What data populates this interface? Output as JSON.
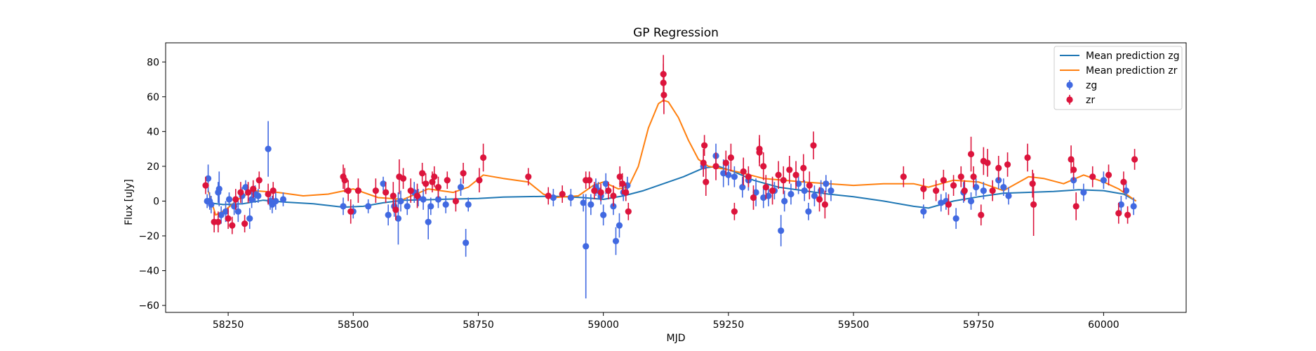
{
  "chart_data": {
    "type": "scatter",
    "title": "GP Regression",
    "xlabel": "MJD",
    "ylabel": "Flux [uJy]",
    "xlim": [
      58125,
      60165
    ],
    "ylim": [
      -64,
      91
    ],
    "xticks": [
      58250,
      58500,
      58750,
      59000,
      59250,
      59500,
      59750,
      60000
    ],
    "yticks": [
      -60,
      -40,
      -20,
      0,
      20,
      40,
      60,
      80
    ],
    "legend_position": "top-right",
    "grid": false,
    "colors": {
      "zg_line": "#1f77b4",
      "zr_line": "#ff7f0e",
      "zg_points": "#4169e1",
      "zr_points": "#dc143c"
    },
    "lines": [
      {
        "name": "Mean prediction zg",
        "x": [
          58210,
          58240,
          58280,
          58320,
          58360,
          58420,
          58480,
          58520,
          58560,
          58600,
          58650,
          58700,
          58750,
          58800,
          58900,
          58960,
          59000,
          59040,
          59080,
          59120,
          59160,
          59200,
          59230,
          59260,
          59300,
          59350,
          59400,
          59450,
          59500,
          59560,
          59620,
          59650,
          59700,
          59750,
          59800,
          59900,
          59950,
          60000,
          60040,
          60065
        ],
        "y": [
          -1,
          -2,
          -1.5,
          0.5,
          -0.5,
          -1.5,
          -3.5,
          -3,
          -1,
          0.5,
          0.8,
          1.2,
          1.5,
          2.3,
          2.8,
          2,
          1,
          3,
          6,
          10,
          14,
          19,
          20,
          17,
          12,
          8,
          6,
          4,
          2.5,
          0,
          -3,
          -4,
          0,
          2.5,
          4.5,
          5.5,
          6.5,
          6,
          4,
          0
        ]
      },
      {
        "name": "Mean prediction zr",
        "x": [
          58210,
          58225,
          58245,
          58270,
          58300,
          58350,
          58400,
          58450,
          58500,
          58550,
          58600,
          58650,
          58700,
          58730,
          58760,
          58800,
          58850,
          58880,
          58900,
          58950,
          58980,
          59000,
          59030,
          59050,
          59070,
          59090,
          59110,
          59120,
          59130,
          59150,
          59170,
          59190,
          59210,
          59230,
          59250,
          59280,
          59320,
          59360,
          59400,
          59450,
          59500,
          59560,
          59620,
          59650,
          59700,
          59750,
          59800,
          59850,
          59880,
          59920,
          59960,
          60000,
          60030,
          60065
        ],
        "y": [
          6,
          -8,
          -5,
          1,
          6,
          5,
          3,
          4,
          7,
          2,
          1,
          7,
          5,
          8,
          15,
          13,
          11,
          4,
          2,
          3,
          9,
          11,
          7,
          8,
          20,
          42,
          56,
          58,
          57,
          48,
          35,
          24,
          20,
          19,
          18,
          16,
          13,
          12,
          11,
          10,
          9,
          10,
          10,
          8,
          12,
          11,
          6,
          14,
          13,
          10,
          15,
          11,
          7,
          0
        ]
      }
    ],
    "series": [
      {
        "name": "zg",
        "points": [
          [
            58208,
            0,
            4
          ],
          [
            58210,
            13,
            8
          ],
          [
            58213,
            0,
            5
          ],
          [
            58216,
            -2,
            5
          ],
          [
            58230,
            5,
            6
          ],
          [
            58232,
            7,
            10
          ],
          [
            58236,
            -8,
            5
          ],
          [
            58245,
            -6,
            6
          ],
          [
            58252,
            1,
            4
          ],
          [
            58262,
            -3,
            5
          ],
          [
            58270,
            -6,
            6
          ],
          [
            58278,
            3,
            5
          ],
          [
            58285,
            8,
            4
          ],
          [
            58293,
            -10,
            6
          ],
          [
            58297,
            1,
            5
          ],
          [
            58304,
            4,
            5
          ],
          [
            58310,
            3,
            4
          ],
          [
            58330,
            30,
            16
          ],
          [
            58334,
            0,
            5
          ],
          [
            58338,
            -2,
            5
          ],
          [
            58345,
            0,
            5
          ],
          [
            58360,
            1,
            4
          ],
          [
            58480,
            -3,
            5
          ],
          [
            58500,
            -6,
            4
          ],
          [
            58530,
            -3,
            4
          ],
          [
            58560,
            10,
            4
          ],
          [
            58570,
            -8,
            6
          ],
          [
            58582,
            -3,
            6
          ],
          [
            58590,
            -10,
            15
          ],
          [
            58595,
            0,
            6
          ],
          [
            58608,
            -3,
            5
          ],
          [
            58622,
            5,
            6
          ],
          [
            58630,
            2,
            5
          ],
          [
            58640,
            1,
            6
          ],
          [
            58650,
            -12,
            10
          ],
          [
            58655,
            -3,
            5
          ],
          [
            58670,
            1,
            5
          ],
          [
            58685,
            -2,
            5
          ],
          [
            58715,
            8,
            5
          ],
          [
            58725,
            -24,
            8
          ],
          [
            58730,
            -2,
            4
          ],
          [
            58900,
            2,
            5
          ],
          [
            58935,
            2,
            5
          ],
          [
            58960,
            -1,
            5
          ],
          [
            58965,
            -26,
            30
          ],
          [
            58975,
            -2,
            6
          ],
          [
            58985,
            8,
            5
          ],
          [
            58990,
            6,
            5
          ],
          [
            58995,
            3,
            5
          ],
          [
            59000,
            -8,
            6
          ],
          [
            59005,
            10,
            6
          ],
          [
            59020,
            -3,
            5
          ],
          [
            59025,
            -23,
            8
          ],
          [
            59032,
            -14,
            7
          ],
          [
            59040,
            5,
            5
          ],
          [
            59048,
            9,
            5
          ],
          [
            59200,
            20,
            6
          ],
          [
            59225,
            26,
            7
          ],
          [
            59240,
            16,
            8
          ],
          [
            59250,
            15,
            6
          ],
          [
            59262,
            14,
            6
          ],
          [
            59278,
            8,
            6
          ],
          [
            59290,
            12,
            6
          ],
          [
            59305,
            5,
            8
          ],
          [
            59320,
            2,
            6
          ],
          [
            59330,
            3,
            6
          ],
          [
            59342,
            6,
            5
          ],
          [
            59355,
            -17,
            9
          ],
          [
            59362,
            0,
            6
          ],
          [
            59375,
            4,
            6
          ],
          [
            59390,
            10,
            6
          ],
          [
            59402,
            6,
            6
          ],
          [
            59410,
            -6,
            5
          ],
          [
            59422,
            3,
            6
          ],
          [
            59435,
            6,
            6
          ],
          [
            59445,
            10,
            5
          ],
          [
            59455,
            6,
            6
          ],
          [
            59640,
            -6,
            4
          ],
          [
            59675,
            -1,
            5
          ],
          [
            59685,
            0,
            5
          ],
          [
            59705,
            -10,
            6
          ],
          [
            59720,
            5,
            6
          ],
          [
            59735,
            0,
            5
          ],
          [
            59745,
            8,
            5
          ],
          [
            59760,
            6,
            5
          ],
          [
            59790,
            12,
            5
          ],
          [
            59800,
            8,
            5
          ],
          [
            59810,
            3,
            5
          ],
          [
            59940,
            12,
            5
          ],
          [
            59960,
            5,
            5
          ],
          [
            60000,
            12,
            5
          ],
          [
            60035,
            -2,
            5
          ],
          [
            60045,
            6,
            5
          ],
          [
            60060,
            -3,
            5
          ]
        ]
      },
      {
        "name": "zr",
        "points": [
          [
            58205,
            9,
            5
          ],
          [
            58222,
            -12,
            6
          ],
          [
            58230,
            -12,
            6
          ],
          [
            58250,
            -10,
            6
          ],
          [
            58258,
            -14,
            5
          ],
          [
            58265,
            1,
            6
          ],
          [
            58275,
            5,
            6
          ],
          [
            58283,
            -13,
            5
          ],
          [
            58290,
            5,
            6
          ],
          [
            58300,
            7,
            5
          ],
          [
            58312,
            12,
            5
          ],
          [
            58330,
            4,
            6
          ],
          [
            58340,
            6,
            5
          ],
          [
            58480,
            14,
            7
          ],
          [
            58483,
            12,
            7
          ],
          [
            58490,
            6,
            6
          ],
          [
            58495,
            -6,
            7
          ],
          [
            58510,
            6,
            7
          ],
          [
            58545,
            6,
            7
          ],
          [
            58565,
            5,
            6
          ],
          [
            58580,
            3,
            8
          ],
          [
            58585,
            -5,
            6
          ],
          [
            58592,
            14,
            10
          ],
          [
            58600,
            13,
            6
          ],
          [
            58615,
            6,
            7
          ],
          [
            58628,
            3,
            7
          ],
          [
            58638,
            16,
            6
          ],
          [
            58645,
            10,
            6
          ],
          [
            58658,
            11,
            6
          ],
          [
            58662,
            14,
            6
          ],
          [
            58670,
            8,
            6
          ],
          [
            58688,
            12,
            5
          ],
          [
            58705,
            0,
            6
          ],
          [
            58720,
            16,
            6
          ],
          [
            58752,
            12,
            7
          ],
          [
            58760,
            25,
            8
          ],
          [
            58850,
            14,
            5
          ],
          [
            58890,
            3,
            5
          ],
          [
            58918,
            4,
            5
          ],
          [
            58965,
            12,
            5
          ],
          [
            58972,
            12,
            5
          ],
          [
            58982,
            6,
            5
          ],
          [
            58995,
            5,
            5
          ],
          [
            59010,
            6,
            5
          ],
          [
            59020,
            3,
            6
          ],
          [
            59033,
            14,
            6
          ],
          [
            59038,
            10,
            6
          ],
          [
            59045,
            5,
            5
          ],
          [
            59050,
            -6,
            5
          ],
          [
            59120,
            73,
            11
          ],
          [
            59120,
            68,
            11
          ],
          [
            59121,
            61,
            11
          ],
          [
            59200,
            22,
            8
          ],
          [
            59202,
            32,
            6
          ],
          [
            59205,
            11,
            8
          ],
          [
            59225,
            20,
            8
          ],
          [
            59245,
            22,
            7
          ],
          [
            59255,
            25,
            8
          ],
          [
            59262,
            -6,
            5
          ],
          [
            59280,
            17,
            8
          ],
          [
            59290,
            14,
            6
          ],
          [
            59300,
            2,
            7
          ],
          [
            59312,
            30,
            8
          ],
          [
            59312,
            28,
            8
          ],
          [
            59320,
            20,
            8
          ],
          [
            59325,
            8,
            7
          ],
          [
            59338,
            6,
            8
          ],
          [
            59350,
            15,
            8
          ],
          [
            59360,
            12,
            8
          ],
          [
            59372,
            18,
            8
          ],
          [
            59385,
            15,
            8
          ],
          [
            59400,
            19,
            8
          ],
          [
            59412,
            9,
            8
          ],
          [
            59420,
            32,
            8
          ],
          [
            59432,
            1,
            7
          ],
          [
            59443,
            -2,
            8
          ],
          [
            59600,
            14,
            6
          ],
          [
            59640,
            7,
            6
          ],
          [
            59665,
            6,
            6
          ],
          [
            59680,
            12,
            6
          ],
          [
            59690,
            -2,
            6
          ],
          [
            59700,
            9,
            6
          ],
          [
            59715,
            14,
            6
          ],
          [
            59722,
            6,
            6
          ],
          [
            59735,
            27,
            10
          ],
          [
            59740,
            14,
            6
          ],
          [
            59755,
            -8,
            6
          ],
          [
            59760,
            23,
            8
          ],
          [
            59768,
            22,
            8
          ],
          [
            59778,
            6,
            6
          ],
          [
            59790,
            19,
            7
          ],
          [
            59808,
            21,
            7
          ],
          [
            59848,
            25,
            8
          ],
          [
            59858,
            10,
            8
          ],
          [
            59860,
            -2,
            18
          ],
          [
            59935,
            24,
            8
          ],
          [
            59940,
            18,
            6
          ],
          [
            59945,
            -3,
            8
          ],
          [
            59978,
            14,
            6
          ],
          [
            60010,
            15,
            6
          ],
          [
            60030,
            -7,
            6
          ],
          [
            60040,
            11,
            6
          ],
          [
            60048,
            -8,
            5
          ],
          [
            60062,
            24,
            6
          ]
        ]
      }
    ],
    "legend": [
      {
        "label": "Mean prediction zg",
        "kind": "line",
        "color": "#1f77b4"
      },
      {
        "label": "Mean prediction zr",
        "kind": "line",
        "color": "#ff7f0e"
      },
      {
        "label": "zg",
        "kind": "errorbar",
        "color": "#4169e1"
      },
      {
        "label": "zr",
        "kind": "errorbar",
        "color": "#dc143c"
      }
    ]
  }
}
